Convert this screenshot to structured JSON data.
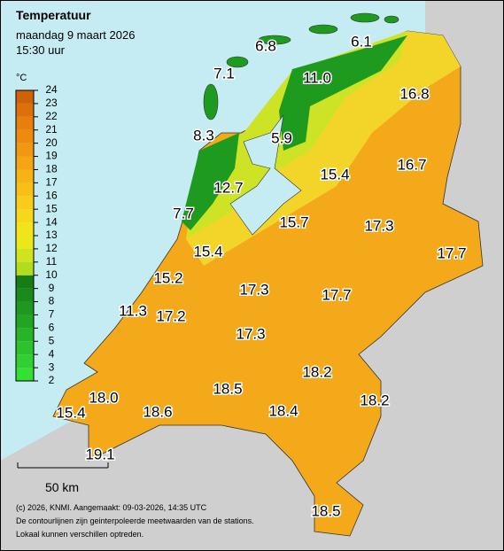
{
  "header": {
    "title": "Temperatuur",
    "date": "maandag 9 maart 2026",
    "time": "15:30 uur"
  },
  "legend": {
    "unit": "°C",
    "ticks": [
      2,
      3,
      4,
      5,
      6,
      7,
      8,
      9,
      10,
      11,
      12,
      13,
      14,
      15,
      16,
      17,
      18,
      19,
      20,
      21,
      22,
      23,
      24
    ],
    "colors": [
      "#33e033",
      "#2fd02f",
      "#2bc22b",
      "#27b427",
      "#22a622",
      "#1e981e",
      "#1a8a1a",
      "#167c16",
      "#b4dc1e",
      "#cfe31e",
      "#e8e81a",
      "#f2e41a",
      "#f6d81a",
      "#f8cc18",
      "#f8bf16",
      "#f7b214",
      "#f5a512",
      "#f29810",
      "#ee8b0e",
      "#e87e0c",
      "#de700a",
      "#cf6208"
    ]
  },
  "stations": [
    "6.8",
    "6.1",
    "7.1",
    "11.0",
    "16.8",
    "8.3",
    "5.9",
    "15.4",
    "16.7",
    "12.7",
    "7.7",
    "15.7",
    "17.3",
    "17.7",
    "15.4",
    "15.2",
    "17.3",
    "17.7",
    "11.3",
    "17.2",
    "17.3",
    "18.2",
    "18.5",
    "18.0",
    "18.2",
    "15.4",
    "18.6",
    "18.4",
    "19.1",
    "18.5"
  ],
  "scale": "50 km",
  "footer": [
    "(c) 2026, KNMI. Aangemaakt: 09-03-2026, 14:35 UTC",
    "De contourlijnen zijn geinterpoleerde meetwaarden van de stations.",
    "Lokaal kunnen verschillen optreden."
  ]
}
